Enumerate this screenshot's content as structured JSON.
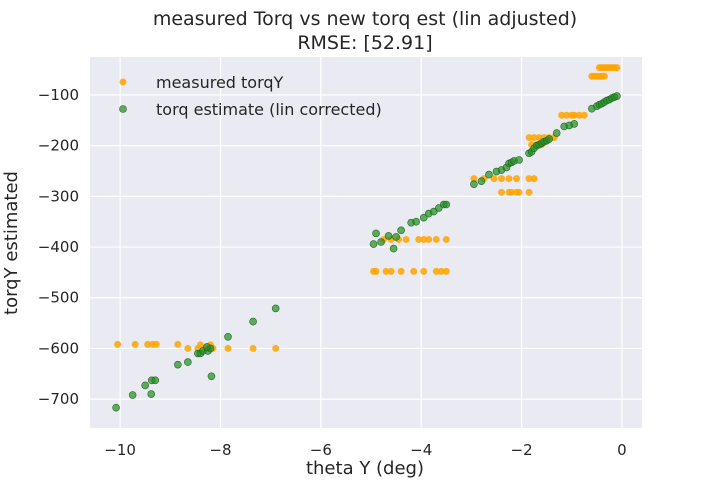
{
  "chart_data": {
    "type": "scatter",
    "title": "measured Torq vs new torq est (lin adjusted)",
    "subtitle": "RMSE: [52.91]",
    "xlabel": "theta Y (deg)",
    "ylabel": "torqY estimated",
    "xlim": [
      -10.6,
      0.4
    ],
    "ylim": [
      -757,
      -25
    ],
    "xticks": [
      -10,
      -8,
      -6,
      -4,
      -2,
      0
    ],
    "xtick_labels": [
      "−10",
      "−8",
      "−6",
      "−4",
      "−2",
      "0"
    ],
    "yticks": [
      -100,
      -200,
      -300,
      -400,
      -500,
      -600,
      -700
    ],
    "ytick_labels": [
      "−100",
      "−200",
      "−300",
      "−400",
      "−500",
      "−600",
      "−700"
    ],
    "grid": true,
    "legend_position": "top-left",
    "series": [
      {
        "name": "measured torqY",
        "color": "#ffa500",
        "points": [
          [
            -10.05,
            -592
          ],
          [
            -9.7,
            -592
          ],
          [
            -9.45,
            -592
          ],
          [
            -9.35,
            -592
          ],
          [
            -9.28,
            -592
          ],
          [
            -8.85,
            -592
          ],
          [
            -8.65,
            -600
          ],
          [
            -8.45,
            -600
          ],
          [
            -8.4,
            -593
          ],
          [
            -8.3,
            -600
          ],
          [
            -8.25,
            -600
          ],
          [
            -8.2,
            -593
          ],
          [
            -8.15,
            -600
          ],
          [
            -7.85,
            -600
          ],
          [
            -7.35,
            -600
          ],
          [
            -6.9,
            -600
          ],
          [
            -4.95,
            -448
          ],
          [
            -4.9,
            -448
          ],
          [
            -4.7,
            -448
          ],
          [
            -4.6,
            -448
          ],
          [
            -4.4,
            -448
          ],
          [
            -4.15,
            -448
          ],
          [
            -3.95,
            -448
          ],
          [
            -3.7,
            -448
          ],
          [
            -3.6,
            -448
          ],
          [
            -3.5,
            -448
          ],
          [
            -4.75,
            -385
          ],
          [
            -4.6,
            -385
          ],
          [
            -4.45,
            -385
          ],
          [
            -4.3,
            -385
          ],
          [
            -4.05,
            -385
          ],
          [
            -3.95,
            -385
          ],
          [
            -3.85,
            -385
          ],
          [
            -3.7,
            -385
          ],
          [
            -3.5,
            -385
          ],
          [
            -2.95,
            -265
          ],
          [
            -2.75,
            -265
          ],
          [
            -2.55,
            -265
          ],
          [
            -2.4,
            -265
          ],
          [
            -2.25,
            -265
          ],
          [
            -2.1,
            -265
          ],
          [
            -1.85,
            -265
          ],
          [
            -1.75,
            -265
          ],
          [
            -2.4,
            -292
          ],
          [
            -2.25,
            -292
          ],
          [
            -2.2,
            -292
          ],
          [
            -2.1,
            -292
          ],
          [
            -2.05,
            -292
          ],
          [
            -1.85,
            -292
          ],
          [
            -1.85,
            -184
          ],
          [
            -1.75,
            -184
          ],
          [
            -1.65,
            -184
          ],
          [
            -1.55,
            -184
          ],
          [
            -1.45,
            -184
          ],
          [
            -1.35,
            -184
          ],
          [
            -1.8,
            -198
          ],
          [
            -1.7,
            -198
          ],
          [
            -1.6,
            -198
          ],
          [
            -1.2,
            -140
          ],
          [
            -1.1,
            -140
          ],
          [
            -1.0,
            -140
          ],
          [
            -0.95,
            -140
          ],
          [
            -0.85,
            -140
          ],
          [
            -0.75,
            -140
          ],
          [
            -0.6,
            -63
          ],
          [
            -0.55,
            -63
          ],
          [
            -0.5,
            -63
          ],
          [
            -0.45,
            -63
          ],
          [
            -0.4,
            -63
          ],
          [
            -0.35,
            -63
          ],
          [
            -0.45,
            -46
          ],
          [
            -0.4,
            -46
          ],
          [
            -0.35,
            -46
          ],
          [
            -0.3,
            -46
          ],
          [
            -0.25,
            -46
          ],
          [
            -0.2,
            -46
          ],
          [
            -0.15,
            -46
          ],
          [
            -0.1,
            -46
          ]
        ]
      },
      {
        "name": "torq estimate (lin corrected)",
        "color": "#228b22",
        "points": [
          [
            -10.08,
            -717
          ],
          [
            -9.75,
            -692
          ],
          [
            -9.5,
            -673
          ],
          [
            -9.38,
            -690
          ],
          [
            -9.37,
            -663
          ],
          [
            -9.3,
            -663
          ],
          [
            -8.85,
            -632
          ],
          [
            -8.65,
            -627
          ],
          [
            -8.45,
            -610
          ],
          [
            -8.4,
            -610
          ],
          [
            -8.35,
            -605
          ],
          [
            -8.25,
            -605
          ],
          [
            -8.18,
            -655
          ],
          [
            -8.2,
            -600
          ],
          [
            -8.27,
            -597
          ],
          [
            -7.85,
            -577
          ],
          [
            -7.35,
            -547
          ],
          [
            -6.9,
            -521
          ],
          [
            -4.95,
            -394
          ],
          [
            -4.9,
            -373
          ],
          [
            -4.8,
            -390
          ],
          [
            -4.65,
            -378
          ],
          [
            -4.55,
            -403
          ],
          [
            -4.5,
            -380
          ],
          [
            -4.4,
            -367
          ],
          [
            -4.2,
            -352
          ],
          [
            -4.1,
            -350
          ],
          [
            -3.95,
            -342
          ],
          [
            -3.85,
            -334
          ],
          [
            -3.75,
            -330
          ],
          [
            -3.65,
            -323
          ],
          [
            -3.55,
            -316
          ],
          [
            -3.5,
            -316
          ],
          [
            -2.95,
            -276
          ],
          [
            -2.8,
            -270
          ],
          [
            -2.65,
            -257
          ],
          [
            -2.5,
            -251
          ],
          [
            -2.4,
            -248
          ],
          [
            -2.3,
            -243
          ],
          [
            -2.25,
            -235
          ],
          [
            -2.2,
            -233
          ],
          [
            -2.15,
            -230
          ],
          [
            -2.05,
            -228
          ],
          [
            -1.85,
            -215
          ],
          [
            -1.8,
            -212
          ],
          [
            -1.75,
            -205
          ],
          [
            -1.7,
            -200
          ],
          [
            -1.65,
            -198
          ],
          [
            -1.6,
            -195
          ],
          [
            -1.55,
            -192
          ],
          [
            -1.5,
            -190
          ],
          [
            -1.45,
            -187
          ],
          [
            -1.3,
            -175
          ],
          [
            -1.15,
            -162
          ],
          [
            -1.05,
            -160
          ],
          [
            -0.95,
            -157
          ],
          [
            -0.6,
            -127
          ],
          [
            -0.5,
            -122
          ],
          [
            -0.45,
            -119
          ],
          [
            -0.4,
            -117
          ],
          [
            -0.35,
            -114
          ],
          [
            -0.3,
            -111
          ],
          [
            -0.25,
            -109
          ],
          [
            -0.2,
            -106
          ],
          [
            -0.15,
            -104
          ],
          [
            -0.1,
            -102
          ]
        ]
      }
    ]
  }
}
